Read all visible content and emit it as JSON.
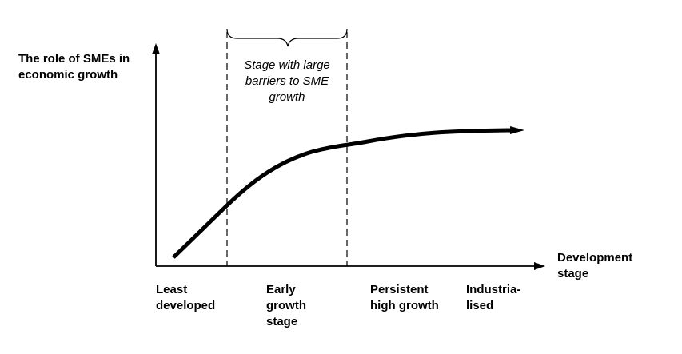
{
  "y_axis_label": "The role of SMEs in\neconomic growth",
  "x_axis_label": "Development\nstage",
  "barrier_note": "Stage with large\nbarriers to SME\ngrowth",
  "stages": [
    "Least\ndeveloped",
    "Early\ngrowth\nstage",
    "Persistent\nhigh growth",
    "Industria-\nlised"
  ],
  "colors": {
    "ink": "#000000",
    "background": "#ffffff"
  }
}
